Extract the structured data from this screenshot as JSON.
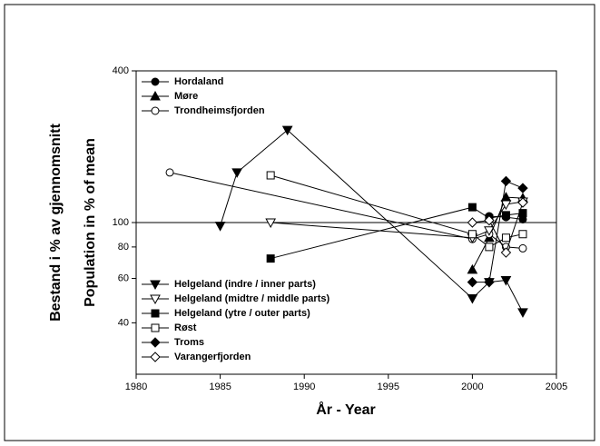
{
  "chart_data": {
    "type": "line",
    "xlabel": "År - Year",
    "ylabel": [
      "Bestand i % av gjennomsnitt",
      "Population in % of mean"
    ],
    "xlim": [
      1980,
      2005
    ],
    "xticks": [
      1980,
      1985,
      1990,
      1995,
      2000,
      2005
    ],
    "ylim": [
      25,
      400
    ],
    "yticks": [
      40,
      60,
      80,
      100,
      400
    ],
    "log_y": true,
    "hline": 100,
    "series": [
      {
        "name": "Hordaland",
        "marker": "circle",
        "filled": true,
        "color": "#000000",
        "x": [
          2001,
          2002,
          2003
        ],
        "values": [
          106,
          105,
          103
        ]
      },
      {
        "name": "Møre",
        "marker": "triangle-up",
        "filled": true,
        "color": "#000000",
        "x": [
          2000,
          2001,
          2002,
          2003
        ],
        "values": [
          65,
          87,
          126,
          125
        ]
      },
      {
        "name": "Trondheimsfjorden",
        "marker": "circle",
        "filled": false,
        "color": "#000000",
        "x": [
          1982,
          2000,
          2001,
          2002,
          2003
        ],
        "values": [
          158,
          86,
          90,
          80,
          79
        ]
      },
      {
        "name": "Helgeland (indre / inner parts)",
        "marker": "triangle-down",
        "filled": true,
        "color": "#000000",
        "x": [
          1985,
          1986,
          1989,
          2000,
          2001,
          2002,
          2003
        ],
        "values": [
          97,
          158,
          233,
          50,
          58,
          59,
          44
        ]
      },
      {
        "name": "Helgeland (midtre / middle parts)",
        "marker": "triangle-down",
        "filled": false,
        "color": "#000000",
        "x": [
          1988,
          2000,
          2001,
          2002,
          2003
        ],
        "values": [
          100,
          87,
          93,
          118,
          121
        ]
      },
      {
        "name": "Helgeland (ytre / outer parts)",
        "marker": "square",
        "filled": true,
        "color": "#000000",
        "x": [
          1988,
          2000,
          2001,
          2002,
          2003
        ],
        "values": [
          72,
          115,
          104,
          107,
          109
        ]
      },
      {
        "name": "Røst",
        "marker": "square",
        "filled": false,
        "color": "#000000",
        "x": [
          1988,
          2000,
          2001,
          2002,
          2003
        ],
        "values": [
          154,
          90,
          80,
          87,
          90
        ]
      },
      {
        "name": "Troms",
        "marker": "diamond",
        "filled": true,
        "color": "#000000",
        "x": [
          2000,
          2001,
          2002,
          2003
        ],
        "values": [
          58,
          58,
          146,
          137
        ]
      },
      {
        "name": "Varangerfjorden",
        "marker": "diamond",
        "filled": false,
        "color": "#000000",
        "x": [
          2000,
          2001,
          2002,
          2003
        ],
        "values": [
          100,
          102,
          76,
          120
        ]
      }
    ]
  }
}
